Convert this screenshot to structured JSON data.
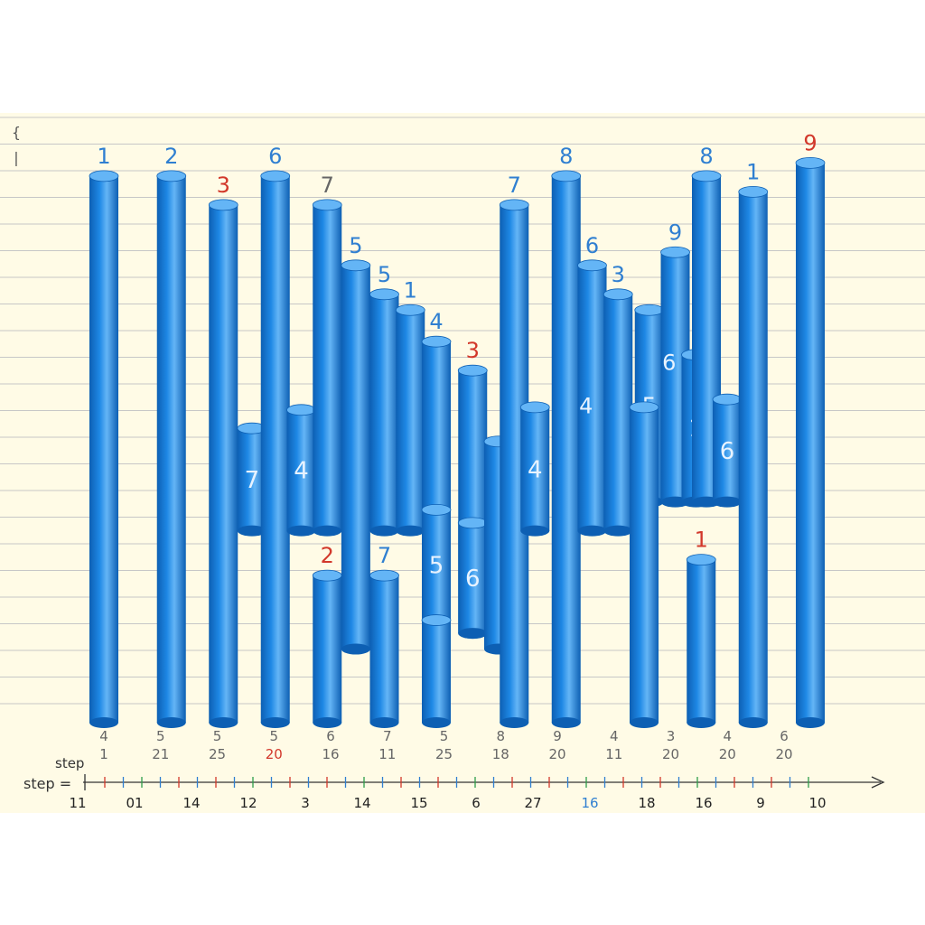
{
  "chart_data": {
    "type": "bar",
    "style": "3d-cylinder-columns",
    "title": "",
    "xlabel": "",
    "ylabel": "",
    "grid": true,
    "legend": "none",
    "colors": {
      "background": "#fffbe6",
      "gridline": "#c7c7c7",
      "bar": "#1e88e5",
      "bar_dark": "#0d5fb3",
      "bar_light": "#64b5f6",
      "label_blue": "#2f7fd1",
      "label_red": "#d2382b",
      "inner_label": "#e8f3ff",
      "tick_text": "#666666",
      "axis": "#333333",
      "tick_red": "#d2382b",
      "tick_blue": "#2f7fd1",
      "tick_green": "#2e9e4a"
    },
    "ylim": [
      0,
      22
    ],
    "columns": [
      {
        "id": "c1",
        "slot": 0,
        "bottom": 0,
        "top": 20.8,
        "label": "1",
        "label_color": "blue",
        "label_pos": "top"
      },
      {
        "id": "c2",
        "slot": 1.3,
        "bottom": 0,
        "top": 20.8,
        "label": "2",
        "label_color": "blue",
        "label_pos": "top"
      },
      {
        "id": "c3",
        "slot": 2.3,
        "bottom": 0,
        "top": 19.7,
        "label": "3",
        "label_color": "red",
        "label_pos": "top"
      },
      {
        "id": "c4",
        "slot": 2.85,
        "bottom": 7.3,
        "top": 11.2,
        "label": "7",
        "label_color": "inner",
        "label_pos": "inside"
      },
      {
        "id": "c5",
        "slot": 3.3,
        "bottom": 0,
        "top": 20.8,
        "label": "6",
        "label_color": "blue",
        "label_pos": "top"
      },
      {
        "id": "c6",
        "slot": 3.8,
        "bottom": 7.3,
        "top": 11.9,
        "label": "4",
        "label_color": "inner",
        "label_pos": "inside"
      },
      {
        "id": "c7",
        "slot": 4.3,
        "bottom": 7.3,
        "top": 19.7,
        "label": "7",
        "label_color": "gray",
        "label_pos": "top"
      },
      {
        "id": "c8",
        "slot": 4.3,
        "bottom": 0,
        "top": 5.6,
        "label": "2",
        "label_color": "red",
        "label_pos": "top"
      },
      {
        "id": "c9",
        "slot": 4.85,
        "bottom": 2.8,
        "top": 17.4,
        "label": "5",
        "label_color": "blue",
        "label_pos": "top"
      },
      {
        "id": "c10",
        "slot": 5.4,
        "bottom": 7.3,
        "top": 16.3,
        "label": "5",
        "label_color": "blue",
        "label_pos": "top"
      },
      {
        "id": "c11",
        "slot": 5.4,
        "bottom": 0,
        "top": 5.6,
        "label": "7",
        "label_color": "blue",
        "label_pos": "top"
      },
      {
        "id": "c12",
        "slot": 5.9,
        "bottom": 7.3,
        "top": 15.7,
        "label": "1",
        "label_color": "blue",
        "label_pos": "top"
      },
      {
        "id": "c13",
        "slot": 6.4,
        "bottom": 7.3,
        "top": 14.5,
        "label": "4",
        "label_color": "blue",
        "label_pos": "top"
      },
      {
        "id": "c14",
        "slot": 6.4,
        "bottom": 3.9,
        "top": 8.1,
        "label": "5",
        "label_color": "inner",
        "label_pos": "inside"
      },
      {
        "id": "c15",
        "slot": 6.4,
        "bottom": 0,
        "top": 3.9,
        "label": "",
        "label_color": "inner",
        "label_pos": "none"
      },
      {
        "id": "c16",
        "slot": 7.1,
        "bottom": 3.4,
        "top": 13.4,
        "label": "3",
        "label_color": "red",
        "label_pos": "top"
      },
      {
        "id": "c17",
        "slot": 7.1,
        "bottom": 3.4,
        "top": 7.6,
        "label": "6",
        "label_color": "inner",
        "label_pos": "inside"
      },
      {
        "id": "c18",
        "slot": 7.6,
        "bottom": 2.8,
        "top": 10.7,
        "label": "",
        "label_color": "inner",
        "label_pos": "none"
      },
      {
        "id": "c19",
        "slot": 7.9,
        "bottom": 0,
        "top": 19.7,
        "label": "7",
        "label_color": "blue",
        "label_pos": "top"
      },
      {
        "id": "c20",
        "slot": 8.3,
        "bottom": 7.3,
        "top": 12.0,
        "label": "4",
        "label_color": "inner",
        "label_pos": "inside"
      },
      {
        "id": "c21",
        "slot": 8.9,
        "bottom": 0,
        "top": 20.8,
        "label": "8",
        "label_color": "blue",
        "label_pos": "top"
      },
      {
        "id": "c22",
        "slot": 9.4,
        "bottom": 7.3,
        "top": 17.4,
        "label": "6",
        "label_color": "blue",
        "label_pos": "top"
      },
      {
        "id": "c23",
        "slot": 9.9,
        "bottom": 7.3,
        "top": 16.3,
        "label": "3",
        "label_color": "blue",
        "label_pos": "top"
      },
      {
        "id": "c24",
        "slot": 10.5,
        "bottom": 8.4,
        "top": 15.7,
        "label": "5",
        "label_color": "inner",
        "label_pos": "inside"
      },
      {
        "id": "c25",
        "slot": 10.4,
        "bottom": 0,
        "top": 12.0,
        "label": "",
        "label_color": "blue",
        "label_pos": "none"
      },
      {
        "id": "c26",
        "slot": 11.0,
        "bottom": 8.4,
        "top": 17.9,
        "label": "9",
        "label_color": "blue",
        "label_pos": "top"
      },
      {
        "id": "c27",
        "slot": 11.4,
        "bottom": 8.4,
        "top": 14.0,
        "label": "1",
        "label_color": "inner",
        "label_pos": "inside"
      },
      {
        "id": "c28",
        "slot": 11.5,
        "bottom": 0,
        "top": 6.2,
        "label": "1",
        "label_color": "red",
        "label_pos": "top"
      },
      {
        "id": "c29",
        "slot": 11.6,
        "bottom": 8.4,
        "top": 20.8,
        "label": "8",
        "label_color": "blue",
        "label_pos": "top"
      },
      {
        "id": "c30",
        "slot": 12.0,
        "bottom": 8.4,
        "top": 12.3,
        "label": "6",
        "label_color": "inner",
        "label_pos": "inside"
      },
      {
        "id": "c31",
        "slot": 12.5,
        "bottom": 0,
        "top": 20.2,
        "label": "1",
        "label_color": "blue",
        "label_pos": "top"
      },
      {
        "id": "c32",
        "slot": 13.6,
        "bottom": 0,
        "top": 21.3,
        "label": "9",
        "label_color": "red",
        "label_pos": "top"
      }
    ],
    "extra_inner_labels": [
      {
        "text": "6",
        "near": "c24"
      },
      {
        "text": "4",
        "near": "c21"
      }
    ],
    "bottom_labels": [
      {
        "a": "4",
        "b": "1",
        "b_color": "gray"
      },
      {
        "a": "5",
        "b": "21",
        "b_color": "gray"
      },
      {
        "a": "5",
        "b": "25",
        "b_color": "gray"
      },
      {
        "a": "5",
        "b": "20",
        "b_color": "red"
      },
      {
        "a": "6",
        "b": "16",
        "b_color": "gray"
      },
      {
        "a": "7",
        "b": "11",
        "b_color": "gray"
      },
      {
        "a": "5",
        "b": "25",
        "b_color": "gray"
      },
      {
        "a": "8",
        "b": "18",
        "b_color": "gray"
      },
      {
        "a": "9",
        "b": "20",
        "b_color": "gray"
      },
      {
        "a": "4",
        "b": "11",
        "b_color": "gray"
      },
      {
        "a": "3",
        "b": "20",
        "b_color": "gray"
      },
      {
        "a": "4",
        "b": "20",
        "b_color": "gray"
      },
      {
        "a": "6",
        "b": "20",
        "b_color": "gray"
      }
    ],
    "step_label_top": "step",
    "step_label_axis": "step =",
    "axis_ticks": [
      "11",
      "01",
      "14",
      "12",
      "3",
      "14",
      "15",
      "6",
      "27",
      "16",
      "18",
      "16",
      "9",
      "10"
    ],
    "axis_tick_highlight": {
      "16": "blue"
    },
    "left_marks": [
      "{",
      "|"
    ]
  }
}
